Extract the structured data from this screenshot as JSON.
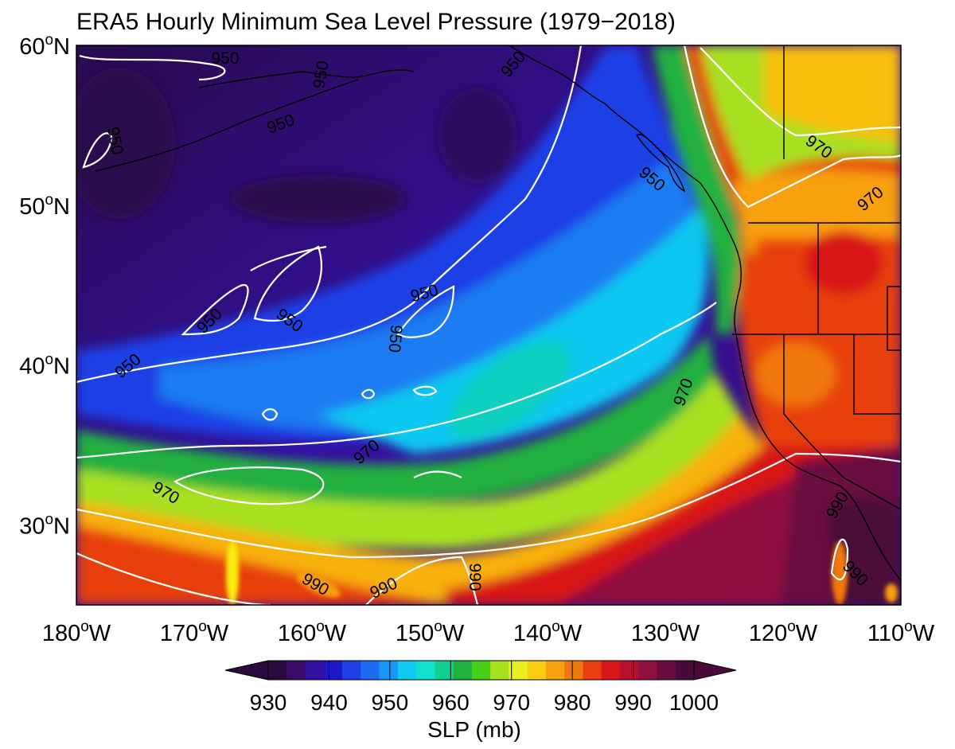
{
  "figure": {
    "title": "ERA5 Hourly Minimum Sea Level Pressure (1979−2018)"
  },
  "map": {
    "lon_range": [
      -180,
      -110
    ],
    "lat_range": [
      25,
      60
    ],
    "lat_ticks": [
      {
        "deg": "60",
        "hemi": "N"
      },
      {
        "deg": "50",
        "hemi": "N"
      },
      {
        "deg": "40",
        "hemi": "N"
      },
      {
        "deg": "30",
        "hemi": "N"
      }
    ],
    "lon_ticks": [
      {
        "deg": "180",
        "hemi": "W"
      },
      {
        "deg": "170",
        "hemi": "W"
      },
      {
        "deg": "160",
        "hemi": "W"
      },
      {
        "deg": "150",
        "hemi": "W"
      },
      {
        "deg": "140",
        "hemi": "W"
      },
      {
        "deg": "130",
        "hemi": "W"
      },
      {
        "deg": "120",
        "hemi": "W"
      },
      {
        "deg": "110",
        "hemi": "W"
      }
    ],
    "contour_levels": [
      950,
      970,
      990
    ],
    "contour_labels": [
      "950",
      "950",
      "950",
      "950",
      "950",
      "950",
      "950",
      "950",
      "950",
      "950",
      "950",
      "970",
      "970",
      "970",
      "970",
      "970",
      "990",
      "990",
      "990",
      "990",
      "990"
    ]
  },
  "colorbar": {
    "ticks": [
      "930",
      "940",
      "950",
      "960",
      "970",
      "980",
      "990",
      "1000"
    ],
    "label": "SLP (mb)",
    "colors": [
      "#2a0a3a",
      "#3a0a6a",
      "#3410a0",
      "#2018c8",
      "#1e40e6",
      "#1c6cf2",
      "#1898f6",
      "#10c8f0",
      "#10e0d0",
      "#10d090",
      "#20b040",
      "#48d018",
      "#a8e020",
      "#e8f020",
      "#f8d010",
      "#f8a010",
      "#f07810",
      "#e84010",
      "#d81818",
      "#b81030",
      "#901040",
      "#6a0c40",
      "#4a0a38"
    ]
  }
}
